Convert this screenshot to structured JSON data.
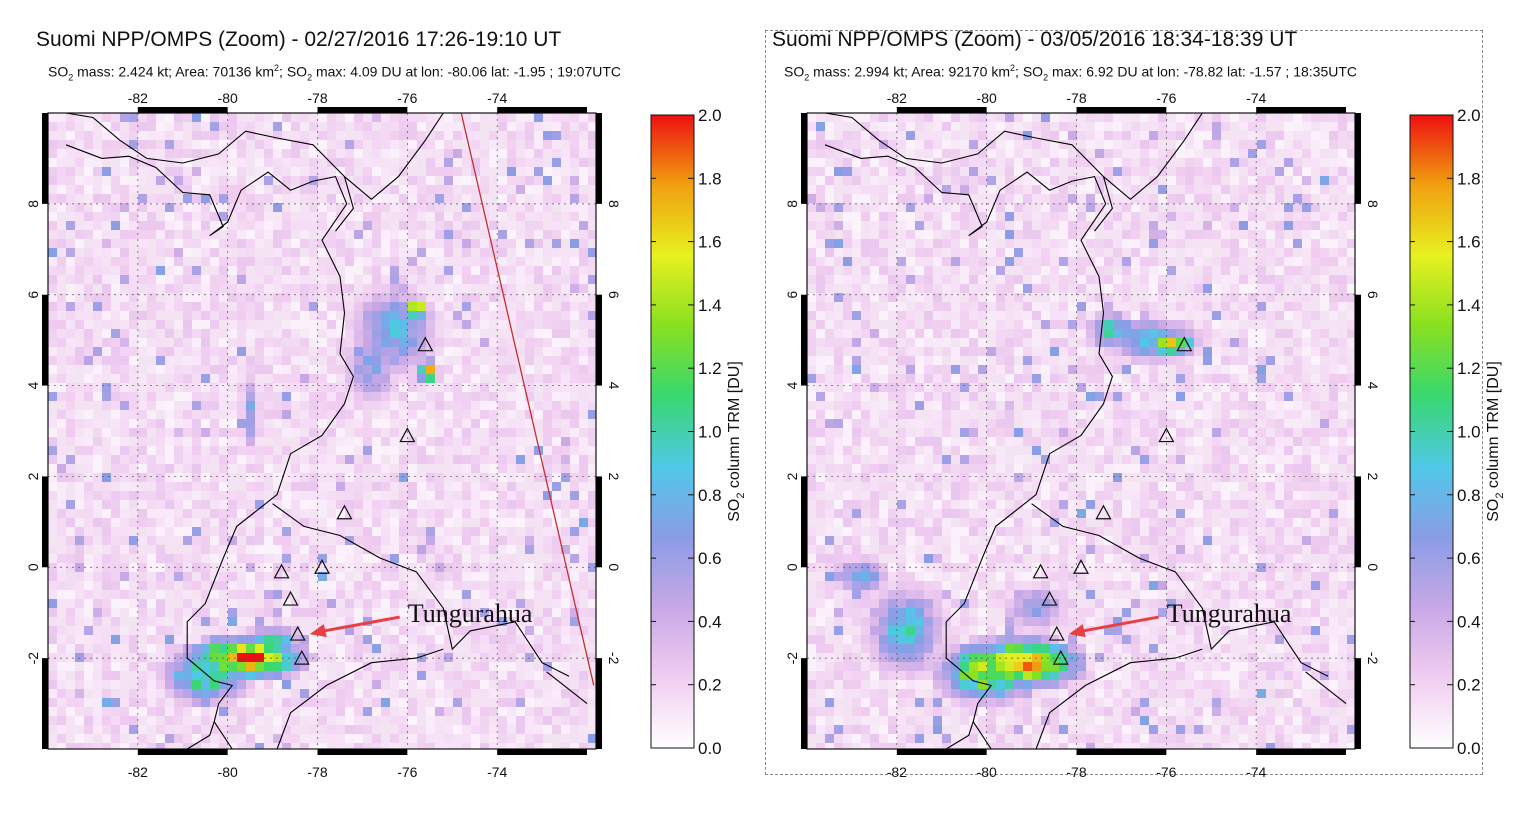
{
  "colors": {
    "background_tint": "#f3e3f3",
    "coast": "#000000",
    "swath_edge": "#c03030",
    "annotation_arrow": "#e84040",
    "scale": [
      "#ffffff",
      "#f0cdf0",
      "#c8a8e6",
      "#8a9ce6",
      "#50c8e8",
      "#38d870",
      "#88e020",
      "#e8f020",
      "#f0a010",
      "#ee1010"
    ]
  },
  "colorbar": {
    "label": "SO2 column TRM [DU]",
    "label_main": "SO",
    "label_sub": "2",
    "label_rest": " column TRM [DU]",
    "ticks": [
      "2.0",
      "1.8",
      "1.6",
      "1.4",
      "1.2",
      "1.0",
      "0.8",
      "0.6",
      "0.4",
      "0.2",
      "0.0"
    ],
    "tick_values": [
      2.0,
      1.8,
      1.6,
      1.4,
      1.2,
      1.0,
      0.8,
      0.6,
      0.4,
      0.2,
      0.0
    ],
    "range": [
      0.0,
      2.0
    ]
  },
  "axes": {
    "lon_ticks": [
      "-82",
      "-80",
      "-78",
      "-76",
      "-74"
    ],
    "lon_values": [
      -82,
      -80,
      -78,
      -76,
      -74
    ],
    "lat_ticks": [
      "8",
      "6",
      "4",
      "2",
      "0",
      "-2"
    ],
    "lat_values": [
      8,
      6,
      4,
      2,
      0,
      -2
    ],
    "lon_range": [
      -84,
      -71.8
    ],
    "lat_range": [
      -4,
      10
    ]
  },
  "volcanoes": [
    {
      "lon": -75.6,
      "lat": 4.9
    },
    {
      "lon": -76.0,
      "lat": 2.9
    },
    {
      "lon": -77.4,
      "lat": 1.2
    },
    {
      "lon": -77.9,
      "lat": 0.0
    },
    {
      "lon": -78.8,
      "lat": -0.1
    },
    {
      "lon": -78.6,
      "lat": -0.7
    },
    {
      "lon": -78.44,
      "lat": -1.47
    },
    {
      "lon": -78.35,
      "lat": -2.0
    }
  ],
  "panels": [
    {
      "title": "Suomi NPP/OMPS (Zoom) - 02/27/2016 17:26-19:10 UT",
      "subtitle": {
        "a": "SO",
        "b": "2",
        "c": " mass: 2.424 kt; Area: 70136 km",
        "d": "2",
        "e": "; SO",
        "f": "2",
        "g": " max: 4.09 DU at lon: -80.06 lat: -1.95 ; 19:07UTC"
      },
      "annotation": "Tungurahua",
      "swath_edge": true,
      "plumes": [
        {
          "lon": -76.3,
          "lat": 5.2,
          "rlon": 0.9,
          "rlat": 0.9,
          "peak": 0.9
        },
        {
          "lon": -75.8,
          "lat": 5.7,
          "rlon": 0.25,
          "rlat": 0.2,
          "peak": 2.0
        },
        {
          "lon": -75.55,
          "lat": 4.3,
          "rlon": 0.2,
          "rlat": 0.25,
          "peak": 1.9
        },
        {
          "lon": -76.8,
          "lat": 4.4,
          "rlon": 0.6,
          "rlat": 0.8,
          "peak": 0.7
        },
        {
          "lon": -79.5,
          "lat": 3.4,
          "rlon": 0.2,
          "rlat": 0.9,
          "peak": 0.7
        },
        {
          "lon": -79.6,
          "lat": -2.0,
          "rlon": 1.2,
          "rlat": 0.45,
          "peak": 2.0
        },
        {
          "lon": -80.5,
          "lat": -2.4,
          "rlon": 0.9,
          "rlat": 0.6,
          "peak": 1.2
        },
        {
          "lon": -79.0,
          "lat": -1.7,
          "rlon": 0.6,
          "rlat": 0.4,
          "peak": 1.2
        }
      ]
    },
    {
      "title": "Suomi NPP/OMPS (Zoom) - 03/05/2016 18:34-18:39 UT",
      "subtitle": {
        "a": "SO",
        "b": "2",
        "c": " mass: 2.994 kt; Area: 92170 km",
        "d": "2",
        "e": "; SO",
        "f": "2",
        "g": " max: 6.92 DU at lon: -78.82 lat: -1.57 ; 18:35UTC"
      },
      "annotation": "Tungurahua",
      "swath_edge": false,
      "plumes": [
        {
          "lon": -76.3,
          "lat": 5.0,
          "rlon": 1.0,
          "rlat": 0.45,
          "peak": 1.0
        },
        {
          "lon": -75.9,
          "lat": 4.9,
          "rlon": 0.5,
          "rlat": 0.2,
          "peak": 2.0
        },
        {
          "lon": -77.2,
          "lat": 5.2,
          "rlon": 0.5,
          "rlat": 0.4,
          "peak": 1.1
        },
        {
          "lon": -79.2,
          "lat": -2.1,
          "rlon": 1.2,
          "rlat": 0.5,
          "peak": 2.0
        },
        {
          "lon": -80.0,
          "lat": -2.3,
          "rlon": 1.0,
          "rlat": 0.6,
          "peak": 1.6
        },
        {
          "lon": -81.8,
          "lat": -1.4,
          "rlon": 0.8,
          "rlat": 0.9,
          "peak": 1.0
        },
        {
          "lon": -82.8,
          "lat": -0.2,
          "rlon": 0.6,
          "rlat": 0.4,
          "peak": 0.8
        },
        {
          "lon": -78.9,
          "lat": -0.9,
          "rlon": 0.7,
          "rlat": 0.5,
          "peak": 0.7
        }
      ]
    }
  ]
}
